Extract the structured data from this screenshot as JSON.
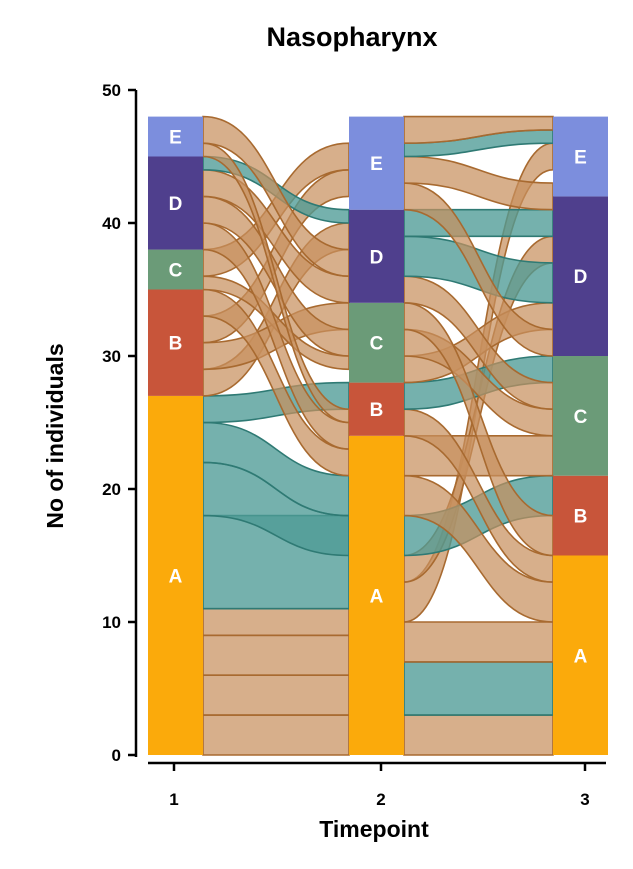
{
  "chart_data": {
    "type": "alluvial",
    "title": "Nasopharynx",
    "xlabel": "Timepoint",
    "ylabel": "No of individuals",
    "ylim": [
      0,
      50
    ],
    "yticks": [
      "0",
      "10",
      "20",
      "30",
      "40",
      "50"
    ],
    "timepoints": [
      "1",
      "2",
      "3"
    ],
    "categories": [
      "A",
      "B",
      "C",
      "D",
      "E"
    ],
    "colors": {
      "A": "#FBAA0B",
      "B": "#C8553A",
      "C": "#6B9B78",
      "D": "#4F3F8D",
      "E": "#7C8EDD",
      "flow_default": "#C8905E",
      "flow_default_line": "#A86A30",
      "flow_highlight": "#4E9B96",
      "flow_highlight_line": "#2F7A74"
    },
    "stacks": [
      {
        "timepoint": "1",
        "segments": [
          {
            "cat": "A",
            "count": 27
          },
          {
            "cat": "B",
            "count": 8
          },
          {
            "cat": "C",
            "count": 3
          },
          {
            "cat": "D",
            "count": 7
          },
          {
            "cat": "E",
            "count": 3
          }
        ]
      },
      {
        "timepoint": "2",
        "segments": [
          {
            "cat": "A",
            "count": 24
          },
          {
            "cat": "B",
            "count": 4
          },
          {
            "cat": "C",
            "count": 6
          },
          {
            "cat": "D",
            "count": 7
          },
          {
            "cat": "E",
            "count": 7
          }
        ]
      },
      {
        "timepoint": "3",
        "segments": [
          {
            "cat": "A",
            "count": 15
          },
          {
            "cat": "B",
            "count": 6
          },
          {
            "cat": "C",
            "count": 9
          },
          {
            "cat": "D",
            "count": 12
          },
          {
            "cat": "E",
            "count": 6
          }
        ]
      }
    ],
    "flows_1_2": [
      {
        "y1": [
          0,
          3
        ],
        "y2": [
          0,
          3
        ],
        "h": false
      },
      {
        "y1": [
          3,
          6
        ],
        "y2": [
          3,
          6
        ],
        "h": false
      },
      {
        "y1": [
          6,
          9
        ],
        "y2": [
          6,
          9
        ],
        "h": false
      },
      {
        "y1": [
          9,
          11
        ],
        "y2": [
          9,
          11
        ],
        "h": false
      },
      {
        "y1": [
          11,
          18
        ],
        "y2": [
          11,
          18
        ],
        "h": true
      },
      {
        "y1": [
          18,
          22
        ],
        "y2": [
          15,
          18
        ],
        "h": true
      },
      {
        "y1": [
          22,
          25
        ],
        "y2": [
          18,
          21
        ],
        "h": true
      },
      {
        "y1": [
          25,
          27
        ],
        "y2": [
          26,
          28
        ],
        "h": true
      },
      {
        "y1": [
          27,
          29
        ],
        "y2": [
          38,
          40
        ],
        "h": false
      },
      {
        "y1": [
          29,
          31
        ],
        "y2": [
          32,
          34
        ],
        "h": false
      },
      {
        "y1": [
          31,
          33
        ],
        "y2": [
          42,
          44
        ],
        "h": false
      },
      {
        "y1": [
          33,
          35
        ],
        "y2": [
          21,
          23
        ],
        "h": false
      },
      {
        "y1": [
          35,
          36
        ],
        "y2": [
          29,
          30
        ],
        "h": false
      },
      {
        "y1": [
          36,
          38
        ],
        "y2": [
          44,
          46
        ],
        "h": false
      },
      {
        "y1": [
          38,
          40
        ],
        "y2": [
          23,
          25
        ],
        "h": false
      },
      {
        "y1": [
          40,
          42
        ],
        "y2": [
          30,
          32
        ],
        "h": false
      },
      {
        "y1": [
          42,
          44
        ],
        "y2": [
          34,
          36
        ],
        "h": false
      },
      {
        "y1": [
          44,
          45
        ],
        "y2": [
          40,
          41
        ],
        "h": true
      },
      {
        "y1": [
          45,
          46
        ],
        "y2": [
          25,
          26
        ],
        "h": false
      },
      {
        "y1": [
          46,
          48
        ],
        "y2": [
          36,
          38
        ],
        "h": false
      }
    ],
    "flows_2_3": [
      {
        "y1": [
          0,
          3
        ],
        "y2": [
          0,
          3
        ],
        "h": false
      },
      {
        "y1": [
          3,
          7
        ],
        "y2": [
          3,
          7
        ],
        "h": true
      },
      {
        "y1": [
          7,
          10
        ],
        "y2": [
          7,
          10
        ],
        "h": false
      },
      {
        "y1": [
          10,
          13
        ],
        "y2": [
          44,
          46
        ],
        "h": false
      },
      {
        "y1": [
          13,
          15
        ],
        "y2": [
          37,
          39
        ],
        "h": false
      },
      {
        "y1": [
          15,
          18
        ],
        "y2": [
          18,
          21
        ],
        "h": true
      },
      {
        "y1": [
          18,
          21
        ],
        "y2": [
          10,
          13
        ],
        "h": false
      },
      {
        "y1": [
          21,
          24
        ],
        "y2": [
          21,
          24
        ],
        "h": false
      },
      {
        "y1": [
          24,
          26
        ],
        "y2": [
          13,
          15
        ],
        "h": false
      },
      {
        "y1": [
          26,
          28
        ],
        "y2": [
          28,
          30
        ],
        "h": true
      },
      {
        "y1": [
          28,
          30
        ],
        "y2": [
          32,
          34
        ],
        "h": false
      },
      {
        "y1": [
          30,
          32
        ],
        "y2": [
          24,
          26
        ],
        "h": false
      },
      {
        "y1": [
          32,
          34
        ],
        "y2": [
          15,
          18
        ],
        "h": false
      },
      {
        "y1": [
          34,
          36
        ],
        "y2": [
          26,
          28
        ],
        "h": false
      },
      {
        "y1": [
          36,
          39
        ],
        "y2": [
          34,
          37
        ],
        "h": true
      },
      {
        "y1": [
          39,
          41
        ],
        "y2": [
          39,
          41
        ],
        "h": true
      },
      {
        "y1": [
          41,
          43
        ],
        "y2": [
          30,
          32
        ],
        "h": false
      },
      {
        "y1": [
          43,
          45
        ],
        "y2": [
          41,
          43
        ],
        "h": false
      },
      {
        "y1": [
          45,
          46
        ],
        "y2": [
          46,
          47
        ],
        "h": true
      },
      {
        "y1": [
          46,
          48
        ],
        "y2": [
          47,
          48
        ],
        "h": false
      }
    ]
  }
}
